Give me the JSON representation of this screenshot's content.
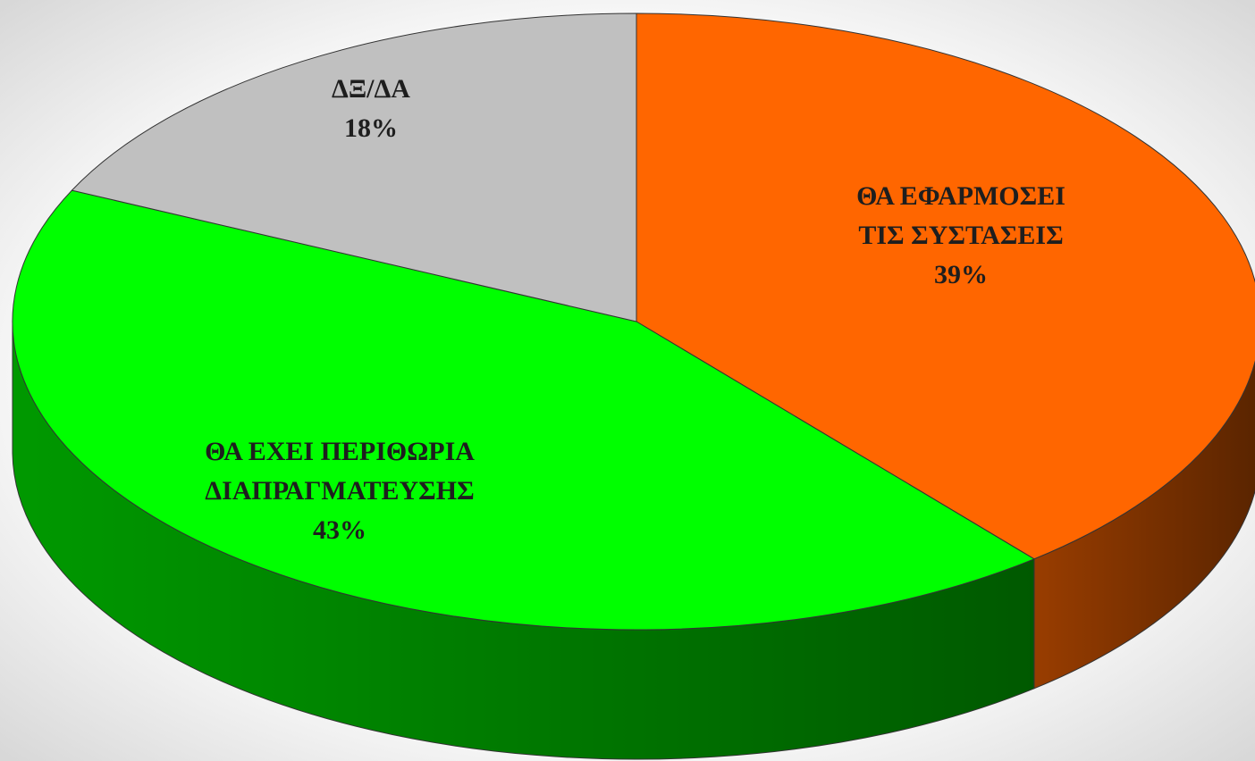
{
  "chart_data": {
    "type": "pie3d",
    "categories": [
      [
        "ΘΑ ΕΦΑΡΜΟΣΕΙ",
        "ΤΙΣ ΣΥΣΤΑΣΕΙΣ"
      ],
      [
        "ΘΑ ΕΧΕΙ ΠΕΡΙΘΩΡΙΑ",
        "ΔΙΑΠΡΑΓΜΑΤΕΥΣΗΣ"
      ],
      [
        "ΔΞ/ΔΑ"
      ]
    ],
    "values": [
      39,
      43,
      18
    ],
    "value_labels": [
      "39%",
      "43%",
      "18%"
    ],
    "colors": [
      "#ff6600",
      "#00ff00",
      "#c0c0c0"
    ]
  }
}
